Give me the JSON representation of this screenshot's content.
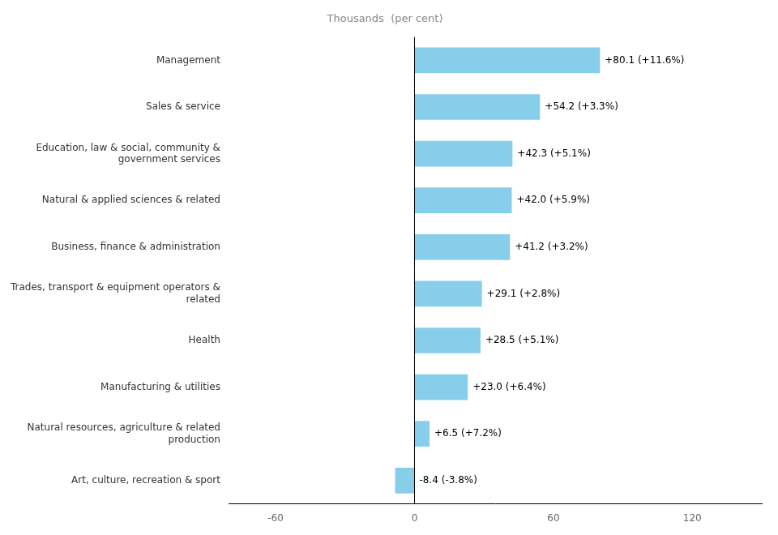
{
  "chart_data": {
    "type": "bar",
    "orientation": "horizontal",
    "title": "Thousands  (per cent)",
    "categories": [
      "Art, culture, recreation & sport",
      "Natural resources, agriculture & related\nproduction",
      "Manufacturing & utilities",
      "Health",
      "Trades, transport & equipment operators &\nrelated",
      "Business, finance & administration",
      "Natural & applied sciences & related",
      "Education, law & social, community &\ngovernment services",
      "Sales & service",
      "Management"
    ],
    "values": [
      -8.4,
      6.5,
      23.0,
      28.5,
      29.1,
      41.2,
      42.0,
      42.3,
      54.2,
      80.1
    ],
    "value_labels": [
      "-8.4 (-3.8%)",
      "+6.5 (+7.2%)",
      "+23.0 (+6.4%)",
      "+28.5 (+5.1%)",
      "+29.1 (+2.8%)",
      "+41.2 (+3.2%)",
      "+42.0 (+5.9%)",
      "+42.3 (+5.1%)",
      "+54.2 (+3.3%)",
      "+80.1 (+11.6%)"
    ],
    "data_labels": true,
    "color": "#87CEEB",
    "xlim": [
      -80,
      150
    ],
    "xticks": [
      -60,
      0,
      60,
      120
    ],
    "grid": false
  }
}
